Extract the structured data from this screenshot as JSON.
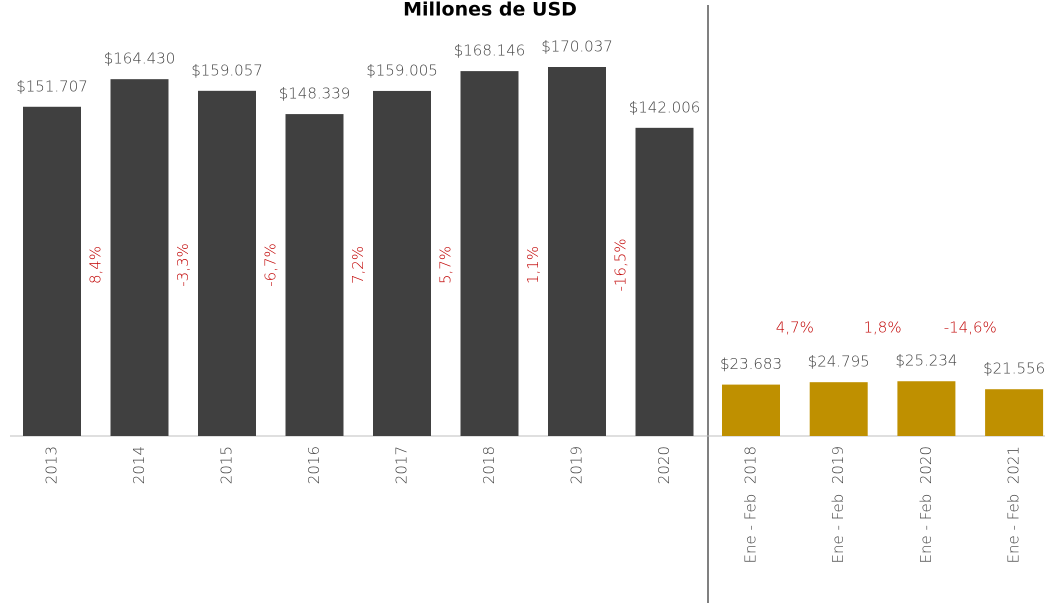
{
  "chart_data": {
    "type": "bar",
    "title": "Millones de USD",
    "categories": [
      "2013",
      "2014",
      "2015",
      "2016",
      "2017",
      "2018",
      "2019",
      "2020",
      "Ene - Feb  2018",
      "Ene - Feb  2019",
      "Ene - Feb  2020",
      "Ene - Feb  2021"
    ],
    "values": [
      151707,
      164430,
      159057,
      148339,
      159005,
      168146,
      170037,
      142006,
      23683,
      24795,
      25234,
      21556
    ],
    "value_labels": [
      "$151.707",
      "$164.430",
      "$159.057",
      "$148.339",
      "$159.005",
      "$168.146",
      "$170.037",
      "$142.006",
      "$23.683",
      "$24.795",
      "$25.234",
      "$21.556"
    ],
    "colors": [
      "#404040",
      "#404040",
      "#404040",
      "#404040",
      "#404040",
      "#404040",
      "#404040",
      "#404040",
      "#bf9000",
      "#bf9000",
      "#bf9000",
      "#bf9000"
    ],
    "changes": [
      null,
      8.4,
      -3.3,
      -6.7,
      7.2,
      5.7,
      1.1,
      -16.5,
      null,
      4.7,
      1.8,
      -14.6
    ],
    "change_labels": [
      null,
      "8,4%",
      "-3,3%",
      "-6,7%",
      "7,2%",
      "5,7%",
      "1,1%",
      "-16,5%",
      null,
      "4,7%",
      "1,8%",
      "-14,6%"
    ],
    "change_color": "#c00000"
  }
}
